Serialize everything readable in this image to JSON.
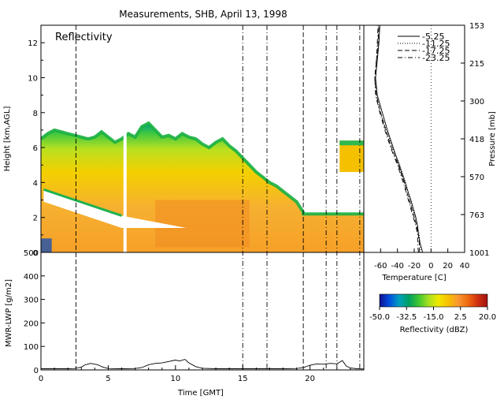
{
  "title": "Measurements, SHB, April 13, 1998",
  "chart_data": [
    {
      "id": "reflectivity",
      "type": "heatmap",
      "annotation": "Reflectivity",
      "ylabel": "Height [km,AGL]",
      "xlim": [
        0,
        24
      ],
      "ylim": [
        0,
        13
      ],
      "yticks": [
        0,
        2,
        4,
        6,
        8,
        10,
        12
      ],
      "cloud_top_km": [
        [
          0.0,
          6.5
        ],
        [
          0.5,
          6.8
        ],
        [
          1.0,
          7.0
        ],
        [
          1.5,
          6.9
        ],
        [
          2.0,
          6.8
        ],
        [
          2.5,
          6.7
        ],
        [
          3.0,
          6.6
        ],
        [
          3.5,
          6.5
        ],
        [
          4.0,
          6.6
        ],
        [
          4.5,
          6.9
        ],
        [
          5.0,
          6.6
        ],
        [
          5.5,
          6.3
        ],
        [
          6.0,
          6.5
        ],
        [
          6.5,
          6.8
        ],
        [
          7.0,
          6.6
        ],
        [
          7.5,
          7.2
        ],
        [
          8.0,
          7.4
        ],
        [
          8.5,
          7.0
        ],
        [
          9.0,
          6.6
        ],
        [
          9.5,
          6.7
        ],
        [
          10.0,
          6.5
        ],
        [
          10.5,
          6.8
        ],
        [
          11.0,
          6.6
        ],
        [
          11.5,
          6.5
        ],
        [
          12.0,
          6.2
        ],
        [
          12.5,
          6.0
        ],
        [
          13.0,
          6.3
        ],
        [
          13.5,
          6.5
        ],
        [
          14.0,
          6.1
        ],
        [
          14.5,
          5.8
        ],
        [
          15.0,
          5.4
        ],
        [
          15.5,
          5.0
        ],
        [
          16.0,
          4.6
        ],
        [
          16.5,
          4.3
        ],
        [
          17.0,
          4.0
        ],
        [
          17.5,
          3.8
        ],
        [
          18.0,
          3.5
        ],
        [
          18.5,
          3.2
        ],
        [
          19.0,
          2.9
        ],
        [
          19.5,
          2.3
        ]
      ],
      "lower_layer_top_km": 2.2,
      "upper_patch": {
        "t_start": 22.2,
        "t_end": 24,
        "base_km": 4.6,
        "top_km": 6.4
      },
      "gap_t": 6.25,
      "clear_slot": {
        "t_start": 0.2,
        "t_end": 6.0,
        "base_km": 1.5,
        "top_km": 3.6
      }
    },
    {
      "id": "lwp",
      "type": "line",
      "ylabel": "MWR-LWP [g/m2]",
      "xlabel": "Time [GMT]",
      "xlim": [
        0,
        24
      ],
      "ylim": [
        0,
        500
      ],
      "xticks": [
        0,
        5,
        10,
        15,
        20
      ],
      "yticks": [
        0,
        100,
        200,
        300,
        400,
        500
      ],
      "x": [
        0,
        1,
        2,
        2.5,
        3,
        3.3,
        3.7,
        4.2,
        4.6,
        5,
        6,
        7,
        7.5,
        8,
        8.5,
        9,
        9.5,
        10,
        10.3,
        10.7,
        11,
        11.5,
        12,
        13,
        14,
        15,
        16,
        17,
        18,
        19,
        19.5,
        20,
        20.5,
        21,
        21.5,
        22,
        22.4,
        22.7,
        23,
        23.5,
        24
      ],
      "y": [
        5,
        5,
        5,
        6,
        12,
        22,
        28,
        22,
        12,
        6,
        5,
        6,
        10,
        22,
        28,
        30,
        36,
        42,
        38,
        45,
        30,
        14,
        7,
        5,
        5,
        5,
        5,
        5,
        5,
        6,
        10,
        20,
        26,
        24,
        28,
        26,
        40,
        16,
        8,
        5,
        4
      ]
    },
    {
      "id": "temperature-profile",
      "type": "line",
      "xlabel": "Temperature [C]",
      "ylabel": "Pressure [mb]",
      "xlim": [
        -80,
        40
      ],
      "xticks": [
        -60,
        -40,
        -20,
        0,
        20,
        40
      ],
      "ytick_labels": [
        "153",
        "215",
        "300",
        "418",
        "570",
        "763",
        "1001"
      ],
      "height_km": [
        0,
        0.5,
        1,
        1.5,
        2,
        3,
        4,
        5,
        6,
        7,
        8,
        9,
        10,
        11,
        12,
        13
      ],
      "series": [
        {
          "name": "5.25",
          "dash": "solid",
          "values": [
            -10,
            -13,
            -15,
            -16,
            -18,
            -24,
            -31,
            -38,
            -45,
            -52,
            -58,
            -64,
            -66,
            -64,
            -62,
            -61
          ]
        },
        {
          "name": "11.25",
          "dash": "dot",
          "values": [
            -12,
            -13,
            -14,
            -16,
            -19,
            -25,
            -30,
            -37,
            -46,
            -53,
            -60,
            -65,
            -66,
            -64,
            -63,
            -62
          ]
        },
        {
          "name": "17.25",
          "dash": "dash",
          "values": [
            -14,
            -14,
            -15,
            -17,
            -20,
            -26,
            -32,
            -39,
            -47,
            -54,
            -60,
            -65,
            -67,
            -65,
            -63,
            -62
          ]
        },
        {
          "name": "23.25",
          "dash": "dashdot",
          "values": [
            -15,
            -16,
            -16,
            -18,
            -21,
            -27,
            -33,
            -40,
            -48,
            -55,
            -61,
            -66,
            -67,
            -65,
            -64,
            -63
          ]
        }
      ]
    },
    {
      "id": "colorbar",
      "type": "heatmap",
      "label": "Reflectivity (dBZ)",
      "range": [
        -50,
        20
      ],
      "tick_labels": [
        "-50.0",
        "-32.5",
        "-15.0",
        "2.5",
        "20.0"
      ],
      "colors": [
        "#10108f",
        "#0050e0",
        "#00a0c0",
        "#00a060",
        "#40c830",
        "#a8e020",
        "#f0e800",
        "#f8c000",
        "#f89830",
        "#f06a10",
        "#d03010",
        "#a01010"
      ]
    }
  ],
  "vertical_markers": [
    {
      "t": 2.6,
      "style": "dash"
    },
    {
      "t": 15.0,
      "style": "dashdot"
    },
    {
      "t": 16.8,
      "style": "dashdot"
    },
    {
      "t": 19.5,
      "style": "dash"
    },
    {
      "t": 21.2,
      "style": "dashdot"
    },
    {
      "t": 22.0,
      "style": "dashdot"
    },
    {
      "t": 23.7,
      "style": "dashdot"
    }
  ]
}
